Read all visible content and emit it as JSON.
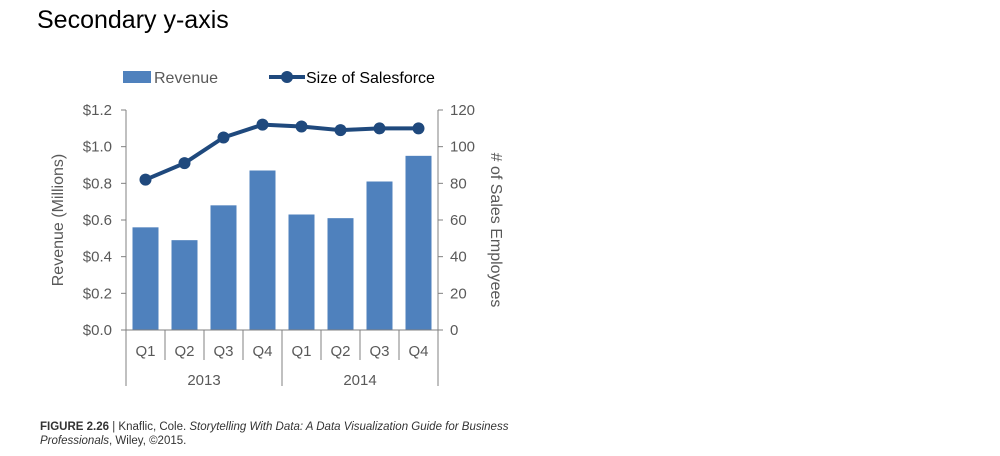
{
  "title": "Secondary y-axis",
  "caption": {
    "figure_label": "FIGURE 2.26",
    "separator": " | ",
    "author": "Knaflic, Cole. ",
    "book_title": "Storytelling With Data: A Data Visualization Guide for Business Professionals",
    "publisher": ", Wiley, ©2015."
  },
  "chart_data": {
    "type": "bar",
    "categories": [
      "Q1",
      "Q2",
      "Q3",
      "Q4",
      "Q1",
      "Q2",
      "Q3",
      "Q4"
    ],
    "groups": [
      {
        "label": "2013",
        "span": [
          0,
          3
        ]
      },
      {
        "label": "2014",
        "span": [
          4,
          7
        ]
      }
    ],
    "series": [
      {
        "name": "Revenue",
        "type": "bar",
        "axis": "left",
        "color": "#4F81BD",
        "values": [
          0.56,
          0.49,
          0.68,
          0.87,
          0.63,
          0.61,
          0.81,
          0.95
        ]
      },
      {
        "name": "Size of Salesforce",
        "type": "line",
        "axis": "right",
        "color": "#1F497D",
        "values": [
          82,
          91,
          105,
          112,
          111,
          109,
          110,
          110
        ]
      }
    ],
    "ylabel": "Revenue (Millions)",
    "ylabel_right": "# of Sales Employees",
    "ylim": [
      0,
      1.2
    ],
    "ylim_right": [
      0,
      120
    ],
    "yticks": [
      "$0.0",
      "$0.2",
      "$0.4",
      "$0.6",
      "$0.8",
      "$1.0",
      "$1.2"
    ],
    "yticks_right": [
      "0",
      "20",
      "40",
      "60",
      "80",
      "100",
      "120"
    ],
    "legend_position": "top",
    "grid": false
  }
}
